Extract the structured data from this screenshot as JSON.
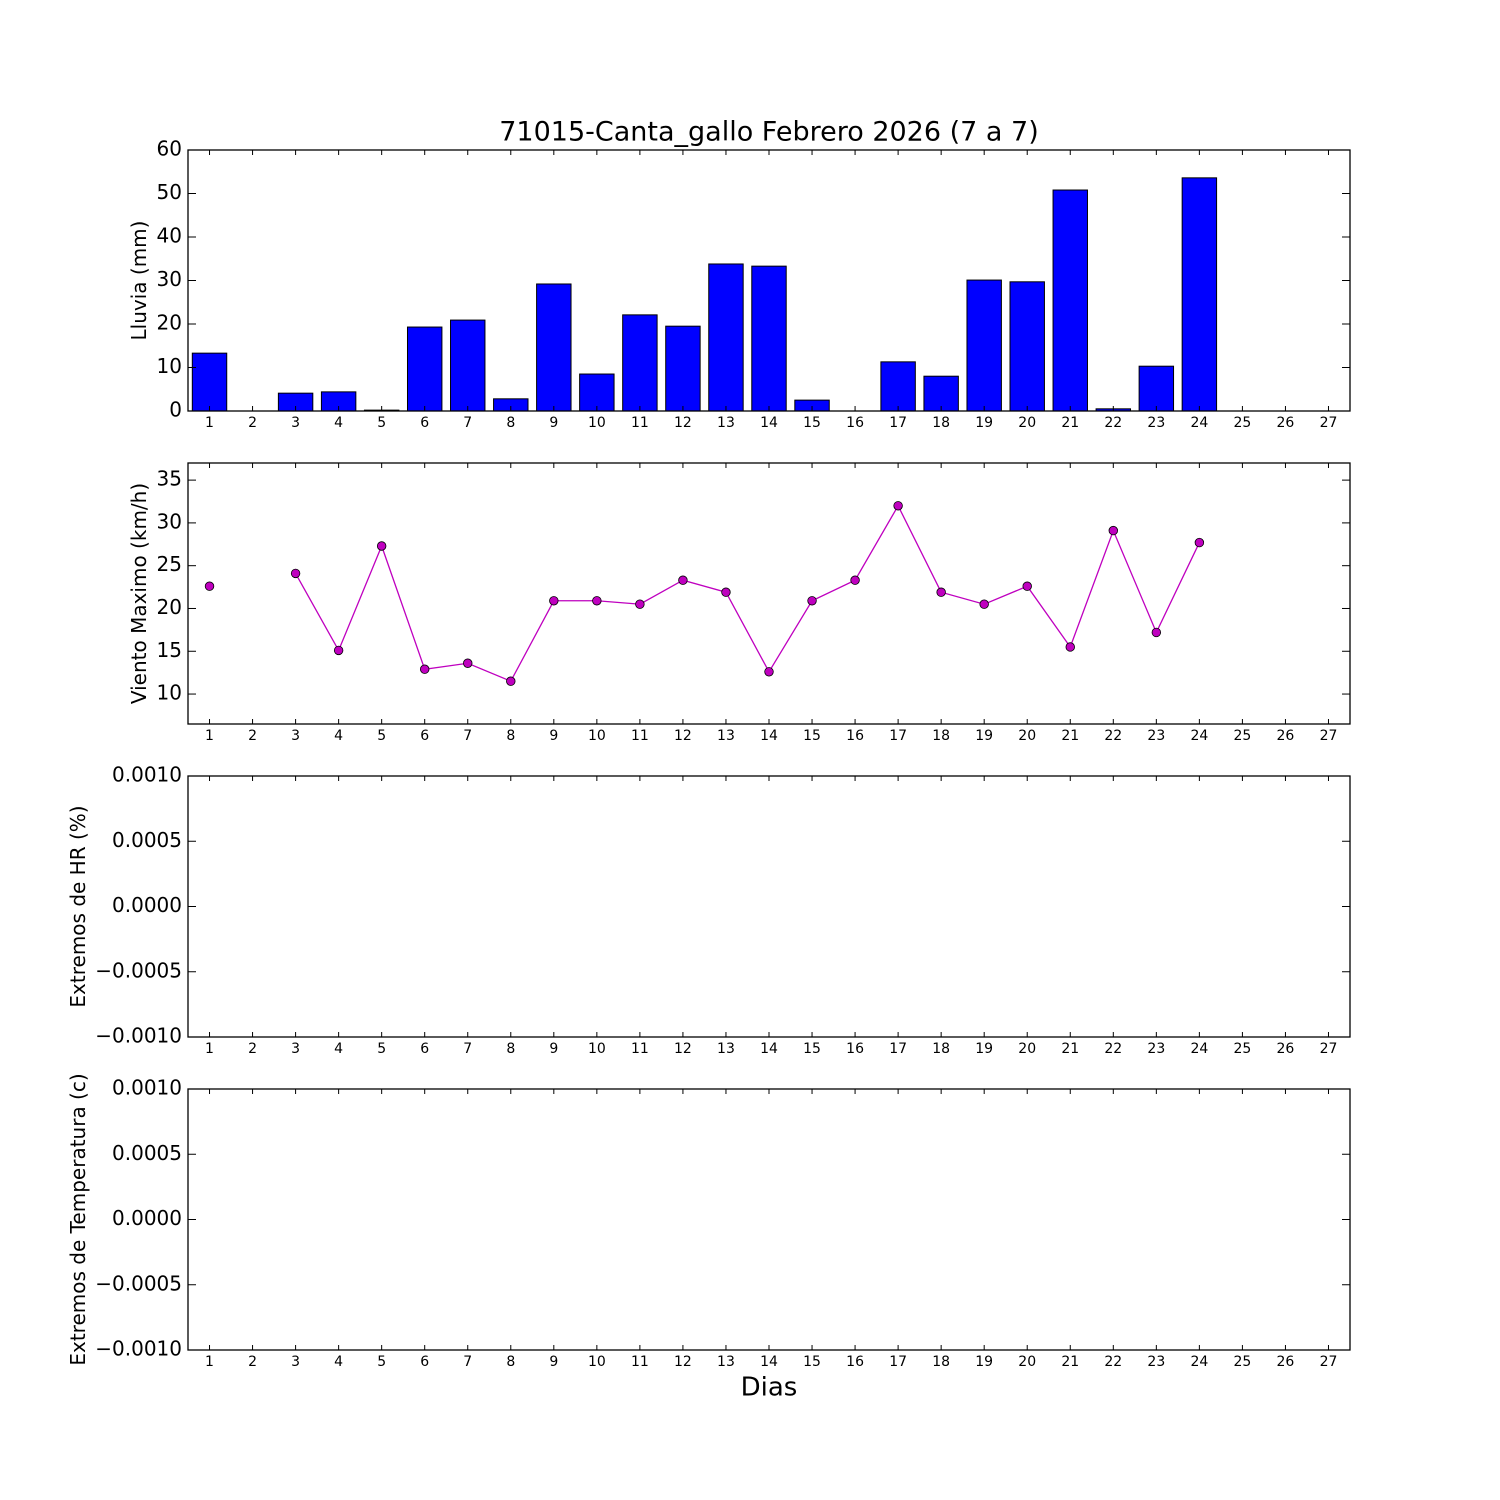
{
  "chart_data": [
    {
      "type": "bar",
      "title": "71015-Canta_gallo Febrero 2026  (7 a 7)",
      "ylabel": "Lluvia (mm)",
      "x": [
        1,
        2,
        3,
        4,
        5,
        6,
        7,
        8,
        9,
        10,
        11,
        12,
        13,
        14,
        15,
        16,
        17,
        18,
        19,
        20,
        21,
        22,
        23,
        24,
        25,
        26,
        27
      ],
      "values": [
        13.3,
        0,
        4.1,
        4.4,
        0.2,
        19.3,
        20.9,
        2.8,
        29.2,
        8.5,
        22.1,
        19.5,
        33.8,
        33.3,
        2.5,
        0,
        11.3,
        8.0,
        30.1,
        29.7,
        50.8,
        0.5,
        10.3,
        53.6,
        null,
        null,
        null
      ],
      "color": "#0000ff",
      "xlim": [
        0.5,
        27.5
      ],
      "xticks": [
        1,
        2,
        3,
        4,
        5,
        6,
        7,
        8,
        9,
        10,
        11,
        12,
        13,
        14,
        15,
        16,
        17,
        18,
        19,
        20,
        21,
        22,
        23,
        24,
        25,
        26,
        27
      ],
      "ylim": [
        0,
        60
      ],
      "yticks": [
        0,
        10,
        20,
        30,
        40,
        50,
        60
      ]
    },
    {
      "type": "line",
      "ylabel": "Viento Maximo (km/h)",
      "x": [
        1,
        2,
        3,
        4,
        5,
        6,
        7,
        8,
        9,
        10,
        11,
        12,
        13,
        14,
        15,
        16,
        17,
        18,
        19,
        20,
        21,
        22,
        23,
        24,
        25,
        26,
        27
      ],
      "values": [
        22.6,
        null,
        24.1,
        15.1,
        27.3,
        12.9,
        13.6,
        11.5,
        20.9,
        20.9,
        20.5,
        23.3,
        21.9,
        12.6,
        20.9,
        23.3,
        32.0,
        21.9,
        20.5,
        22.6,
        15.5,
        29.1,
        17.2,
        27.7,
        null,
        null,
        null
      ],
      "color": "#bf00bf",
      "xlim": [
        0.5,
        27.5
      ],
      "xticks": [
        1,
        2,
        3,
        4,
        5,
        6,
        7,
        8,
        9,
        10,
        11,
        12,
        13,
        14,
        15,
        16,
        17,
        18,
        19,
        20,
        21,
        22,
        23,
        24,
        25,
        26,
        27
      ],
      "ylim": [
        6.5,
        37
      ],
      "yticks": [
        10,
        15,
        20,
        25,
        30,
        35
      ]
    },
    {
      "type": "line",
      "ylabel": "Extremos de HR (%)",
      "xlim": [
        0.5,
        27.5
      ],
      "xticks": [
        1,
        2,
        3,
        4,
        5,
        6,
        7,
        8,
        9,
        10,
        11,
        12,
        13,
        14,
        15,
        16,
        17,
        18,
        19,
        20,
        21,
        22,
        23,
        24,
        25,
        26,
        27
      ],
      "ylim": [
        -0.001,
        0.001
      ],
      "yticks": [
        {
          "value": -0.001,
          "label": "−0.0010"
        },
        {
          "value": -0.0005,
          "label": "−0.0005"
        },
        {
          "value": 0,
          "label": "0.0000"
        },
        {
          "value": 0.0005,
          "label": "0.0005"
        },
        {
          "value": 0.001,
          "label": "0.0010"
        }
      ]
    },
    {
      "type": "line",
      "ylabel": "Extremos de Temperatura (c)",
      "xlabel": "Dias",
      "xlim": [
        0.5,
        27.5
      ],
      "xticks": [
        1,
        2,
        3,
        4,
        5,
        6,
        7,
        8,
        9,
        10,
        11,
        12,
        13,
        14,
        15,
        16,
        17,
        18,
        19,
        20,
        21,
        22,
        23,
        24,
        25,
        26,
        27
      ],
      "ylim": [
        -0.001,
        0.001
      ],
      "yticks": [
        {
          "value": -0.001,
          "label": "−0.0010"
        },
        {
          "value": -0.0005,
          "label": "−0.0005"
        },
        {
          "value": 0,
          "label": "0.0000"
        },
        {
          "value": 0.0005,
          "label": "0.0005"
        },
        {
          "value": 0.001,
          "label": "0.0010"
        }
      ]
    }
  ]
}
